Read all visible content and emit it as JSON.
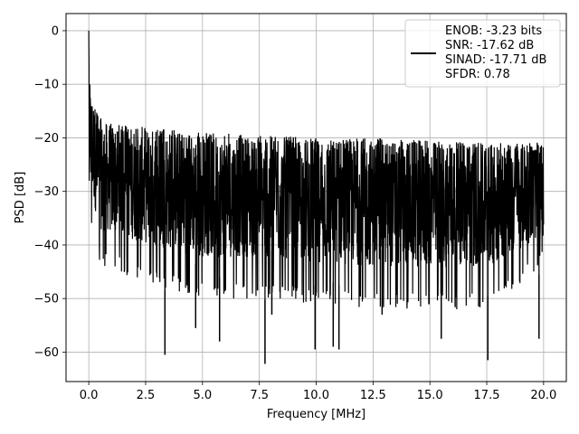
{
  "chart_data": {
    "type": "line",
    "xlabel": "Frequency [MHz]",
    "ylabel": "PSD [dB]",
    "xlim": [
      -1.0,
      21.0
    ],
    "ylim": [
      -65.5,
      3.2
    ],
    "xticks": [
      0.0,
      2.5,
      5.0,
      7.5,
      10.0,
      12.5,
      15.0,
      17.5,
      20.0
    ],
    "xtick_labels": [
      "0.0",
      "2.5",
      "5.0",
      "7.5",
      "10.0",
      "12.5",
      "15.0",
      "17.5",
      "20.0"
    ],
    "yticks": [
      0,
      -10,
      -20,
      -30,
      -40,
      -50,
      -60
    ],
    "ytick_labels": [
      "0",
      "−10",
      "−20",
      "−30",
      "−40",
      "−50",
      "−60"
    ],
    "grid": true,
    "legend_position": "top-right",
    "line_color": "#000000",
    "series": [
      {
        "name": "ENOB: -3.23 bits\nSNR: -17.62 dB\nSINAD: -17.71 dB\nSFDR: 0.78",
        "x_range": [
          0.0,
          20.0
        ],
        "peak": {
          "x": 0.0,
          "y": 0
        },
        "upper_envelope": [
          [
            0.05,
            -10
          ],
          [
            0.3,
            -14
          ],
          [
            0.6,
            -17
          ],
          [
            2.5,
            -18
          ],
          [
            5.0,
            -19
          ],
          [
            7.5,
            -19.5
          ],
          [
            10.0,
            -20
          ],
          [
            12.5,
            -20
          ],
          [
            15.0,
            -20.5
          ],
          [
            17.5,
            -21
          ],
          [
            20.0,
            -21
          ]
        ],
        "lower_envelope": [
          [
            0.05,
            -36
          ],
          [
            0.5,
            -44
          ],
          [
            2.5,
            -47
          ],
          [
            5.0,
            -50
          ],
          [
            7.5,
            -50
          ],
          [
            10.0,
            -51
          ],
          [
            12.5,
            -52
          ],
          [
            15.0,
            -52
          ],
          [
            17.5,
            -52
          ],
          [
            20.0,
            -44
          ]
        ],
        "deep_nulls": [
          {
            "x": 3.35,
            "y": -60.5
          },
          {
            "x": 4.7,
            "y": -55.5
          },
          {
            "x": 5.75,
            "y": -58.0
          },
          {
            "x": 7.75,
            "y": -62.2
          },
          {
            "x": 8.05,
            "y": -53.0
          },
          {
            "x": 9.95,
            "y": -59.5
          },
          {
            "x": 10.75,
            "y": -59.0
          },
          {
            "x": 11.0,
            "y": -59.5
          },
          {
            "x": 12.9,
            "y": -53.0
          },
          {
            "x": 15.5,
            "y": -57.5
          },
          {
            "x": 17.55,
            "y": -61.5
          },
          {
            "x": 19.8,
            "y": -57.5
          }
        ]
      }
    ]
  },
  "legend": {
    "lines": [
      "ENOB: -3.23 bits",
      "SNR: -17.62 dB",
      "SINAD: -17.71 dB",
      "SFDR: 0.78"
    ]
  }
}
